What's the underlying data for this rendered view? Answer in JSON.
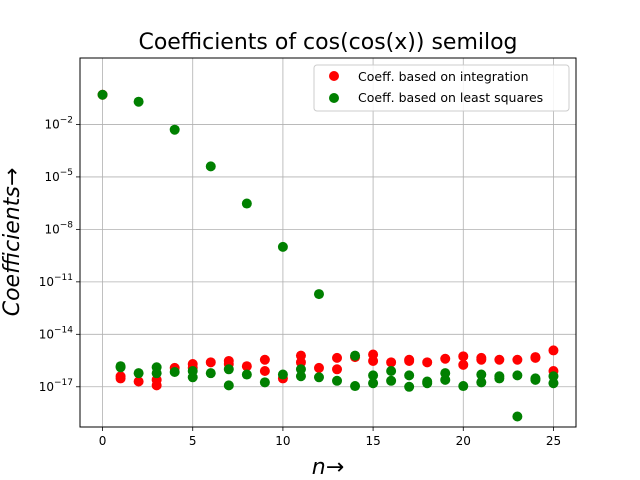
{
  "chart_data": {
    "type": "scatter",
    "title": "Coefficients of cos(cos(x)) semilog",
    "xlabel": "n→",
    "ylabel": "Coefficients→",
    "yscale": "log",
    "xlim": [
      -1.25,
      26.25
    ],
    "ylim_log10": [
      -19.3,
      1.8
    ],
    "xticks": [
      0,
      5,
      10,
      15,
      20,
      25
    ],
    "yticks": [
      {
        "exp": -2,
        "label": "10−2"
      },
      {
        "exp": -5,
        "label": "10−5"
      },
      {
        "exp": -8,
        "label": "10−8"
      },
      {
        "exp": -11,
        "label": "10−11"
      },
      {
        "exp": -14,
        "label": "10−14"
      },
      {
        "exp": -17,
        "label": "10−17"
      }
    ],
    "grid": true,
    "legend_position": "top-right",
    "colors": {
      "integration": "#ff0000",
      "least_squares": "#008000"
    },
    "series": [
      {
        "name": "Coeff. based on integration",
        "color": "#ff0000",
        "points": [
          [
            0,
            0.5
          ],
          [
            1,
            4e-17
          ],
          [
            1,
            3e-17
          ],
          [
            2,
            2e-17
          ],
          [
            3,
            2.5e-17
          ],
          [
            3,
            1.2e-17
          ],
          [
            4,
            1.2e-16
          ],
          [
            5,
            2e-16
          ],
          [
            5,
            1.2e-16
          ],
          [
            6,
            2.5e-16
          ],
          [
            7,
            3e-16
          ],
          [
            7,
            2e-16
          ],
          [
            8,
            1.5e-16
          ],
          [
            9,
            3.5e-16
          ],
          [
            9,
            8e-17
          ],
          [
            10,
            3e-17
          ],
          [
            11,
            6e-16
          ],
          [
            11,
            2.5e-16
          ],
          [
            12,
            1.2e-16
          ],
          [
            13,
            4.5e-16
          ],
          [
            13,
            1e-16
          ],
          [
            14,
            5e-16
          ],
          [
            15,
            7e-16
          ],
          [
            15,
            3e-16
          ],
          [
            16,
            2.5e-16
          ],
          [
            17,
            3.5e-16
          ],
          [
            17,
            3e-16
          ],
          [
            18,
            2.5e-16
          ],
          [
            19,
            4e-16
          ],
          [
            20,
            5.5e-16
          ],
          [
            20,
            1.8e-16
          ],
          [
            21,
            4.5e-16
          ],
          [
            21,
            3.5e-16
          ],
          [
            22,
            3.5e-16
          ],
          [
            23,
            3.5e-16
          ],
          [
            24,
            5e-16
          ],
          [
            24,
            4.5e-16
          ],
          [
            25,
            1.2e-15
          ],
          [
            25,
            8e-17
          ]
        ]
      },
      {
        "name": "Coeff. based on least squares",
        "color": "#008000",
        "points": [
          [
            0,
            0.5
          ],
          [
            1,
            1.5e-16
          ],
          [
            1,
            1.3e-16
          ],
          [
            2,
            0.2
          ],
          [
            2,
            6e-17
          ],
          [
            3,
            1.3e-16
          ],
          [
            3,
            6e-17
          ],
          [
            4,
            0.005
          ],
          [
            4,
            7e-17
          ],
          [
            5,
            8e-17
          ],
          [
            5,
            3.5e-17
          ],
          [
            6,
            4e-05
          ],
          [
            6,
            6e-17
          ],
          [
            7,
            1e-16
          ],
          [
            7,
            1.2e-17
          ],
          [
            8,
            3e-07
          ],
          [
            8,
            5e-17
          ],
          [
            9,
            1.8e-17
          ],
          [
            10,
            1e-09
          ],
          [
            10,
            5e-17
          ],
          [
            11,
            1e-16
          ],
          [
            11,
            4e-17
          ],
          [
            12,
            2e-12
          ],
          [
            12,
            3.5e-17
          ],
          [
            13,
            2.2e-17
          ],
          [
            14,
            6e-16
          ],
          [
            14,
            1.1e-17
          ],
          [
            15,
            4.5e-17
          ],
          [
            15,
            1.6e-17
          ],
          [
            16,
            8e-17
          ],
          [
            16,
            2.2e-17
          ],
          [
            17,
            4.5e-17
          ],
          [
            17,
            1e-17
          ],
          [
            18,
            2e-17
          ],
          [
            18,
            1.6e-17
          ],
          [
            19,
            6e-17
          ],
          [
            19,
            2.5e-17
          ],
          [
            20,
            1.1e-17
          ],
          [
            21,
            5e-17
          ],
          [
            21,
            1.8e-17
          ],
          [
            22,
            4e-17
          ],
          [
            22,
            3e-17
          ],
          [
            23,
            4.5e-17
          ],
          [
            23,
            2e-19
          ],
          [
            24,
            3e-17
          ],
          [
            24,
            2.5e-17
          ],
          [
            25,
            4e-17
          ],
          [
            25,
            1.6e-17
          ]
        ]
      }
    ]
  }
}
